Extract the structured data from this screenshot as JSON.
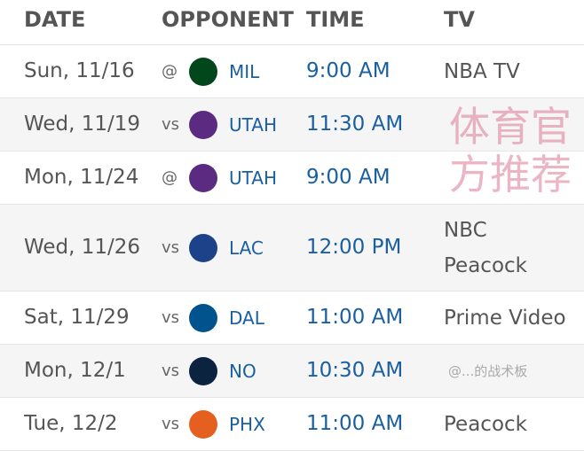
{
  "header": {
    "date": "DATE",
    "opponent": "OPPONENT",
    "time": "TIME",
    "tv": "TV"
  },
  "games": [
    {
      "date": "Sun, 11/16",
      "ha": "@",
      "team": "MIL",
      "logo": "bucks-logo-icon",
      "color": "#00471b",
      "time": "9:00 AM",
      "tv": [
        "NBA TV"
      ]
    },
    {
      "date": "Wed, 11/19",
      "ha": "vs",
      "team": "UTAH",
      "logo": "jazz-logo-icon",
      "color": "#5b2b82",
      "time": "11:30 AM",
      "tv": []
    },
    {
      "date": "Mon, 11/24",
      "ha": "@",
      "team": "UTAH",
      "logo": "jazz-logo-icon",
      "color": "#5b2b82",
      "time": "9:00 AM",
      "tv": []
    },
    {
      "date": "Wed, 11/26",
      "ha": "vs",
      "team": "LAC",
      "logo": "clippers-logo-icon",
      "color": "#1d428a",
      "time": "12:00 PM",
      "tv": [
        "NBC",
        "Peacock"
      ]
    },
    {
      "date": "Sat, 11/29",
      "ha": "vs",
      "team": "DAL",
      "logo": "mavericks-logo-icon",
      "color": "#00538c",
      "time": "11:00 AM",
      "tv": [
        "Prime Video"
      ]
    },
    {
      "date": "Mon, 12/1",
      "ha": "vs",
      "team": "NO",
      "logo": "pelicans-logo-icon",
      "color": "#0c2340",
      "time": "10:30 AM",
      "tv": []
    },
    {
      "date": "Tue, 12/2",
      "ha": "vs",
      "team": "PHX",
      "logo": "suns-logo-icon",
      "color": "#e56020",
      "time": "11:00 AM",
      "tv": [
        "Peacock"
      ]
    }
  ],
  "watermark": "体育官方推荐",
  "watermark2": "@...的战术板"
}
